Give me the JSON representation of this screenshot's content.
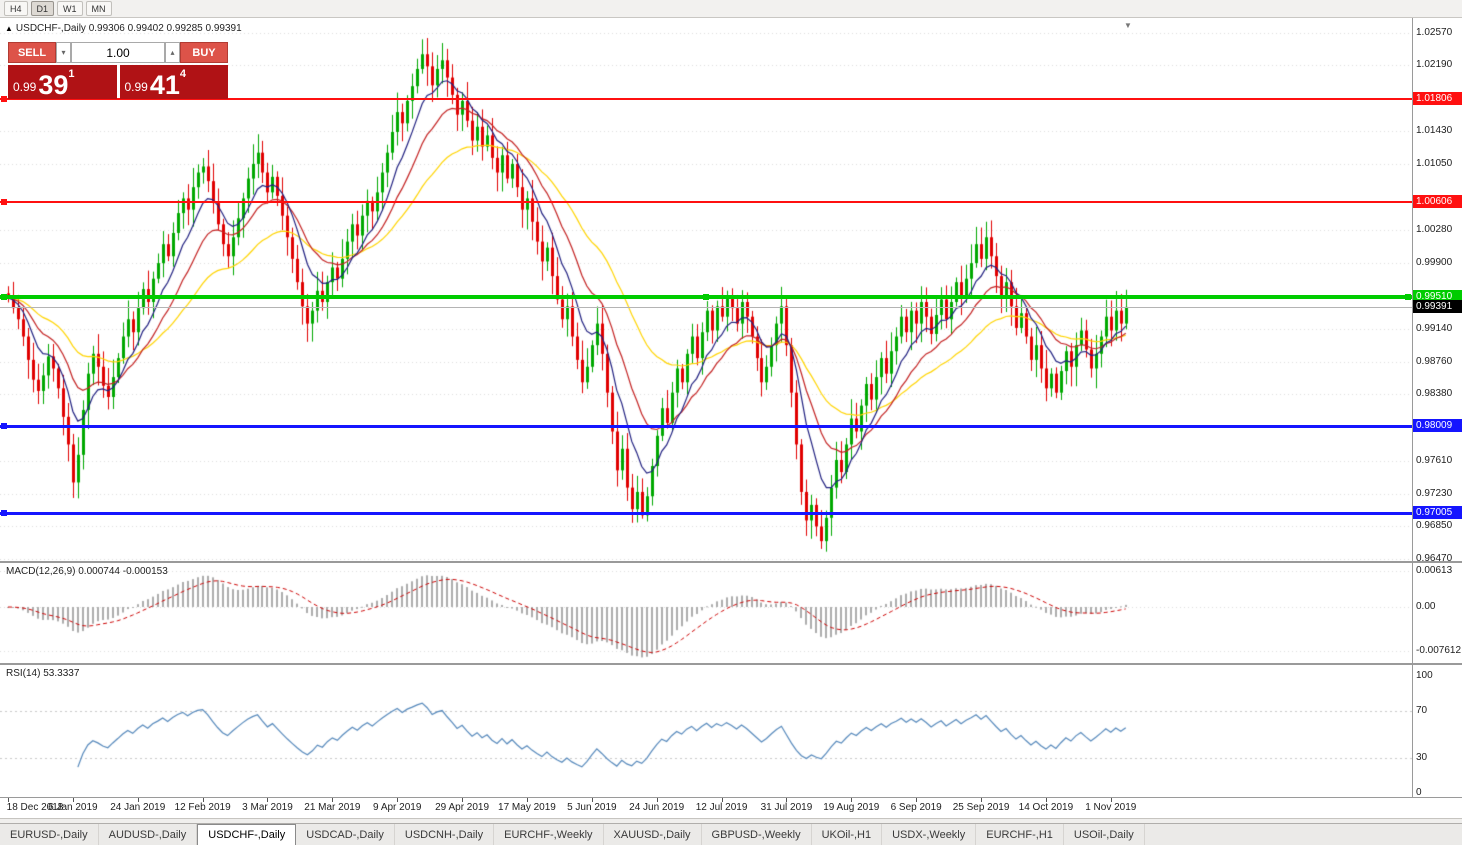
{
  "colors": {
    "up": "#00A800",
    "down": "#E00000",
    "ma_fast": "#202080",
    "ma_mid": "#C32222",
    "ma_slow": "#FFD400",
    "macd_hist": "#ADADAD",
    "macd_signal": "#CC0000",
    "rsi": "#5588BB",
    "grid": "#DCDCDC"
  },
  "toolbar": {
    "timeframes": [
      "H4",
      "D1",
      "W1",
      "MN"
    ],
    "active_index": 1
  },
  "window": {
    "close_icon": "×"
  },
  "chart": {
    "marker": "▲",
    "symbol_title": "USDCHF-,Daily",
    "ohlc_text": "0.99306 0.99402 0.99285 0.99391",
    "shift_marker": "▼"
  },
  "trade_panel": {
    "sell_label": "SELL",
    "buy_label": "BUY",
    "volume": "1.00",
    "spinner_up": "▴",
    "spinner_down": "▾",
    "sell_price": {
      "prefix": "0.99",
      "big": "39",
      "sup": "1"
    },
    "buy_price": {
      "prefix": "0.99",
      "big": "41",
      "sup": "4"
    }
  },
  "price_axis": {
    "labels": [
      "1.02570",
      "1.02190",
      "1.01430",
      "1.01050",
      "1.00280",
      "0.99900",
      "0.99140",
      "0.98760",
      "0.98380",
      "0.97610",
      "0.97230",
      "0.96850",
      "0.96470"
    ],
    "tags": [
      {
        "text": "1.01806",
        "color": "#FF1010"
      },
      {
        "text": "1.00606",
        "color": "#FF1010"
      },
      {
        "text": "0.99510",
        "color": "#00CC00"
      },
      {
        "text": "0.99391",
        "color": "#000000"
      },
      {
        "text": "0.98009",
        "color": "#1515FF"
      },
      {
        "text": "0.97005",
        "color": "#1515FF"
      }
    ]
  },
  "hlines": [
    {
      "value": 1.01806,
      "color": "#FF1010",
      "width": 2,
      "selected": false
    },
    {
      "value": 1.00606,
      "color": "#FF1010",
      "width": 2,
      "selected": false
    },
    {
      "value": 0.9951,
      "color": "#00CC00",
      "width": 4,
      "selected": true
    },
    {
      "value": 0.98009,
      "color": "#1515FF",
      "width": 3,
      "selected": false
    },
    {
      "value": 0.97005,
      "color": "#1515FF",
      "width": 3,
      "selected": false
    }
  ],
  "current_price": 0.99391,
  "macd_panel": {
    "title": "MACD(12,26,9)",
    "value": "0.000744",
    "signal_value": "-0.000153",
    "axis_labels": [
      "0.00613",
      "0.00",
      "-0.007612"
    ]
  },
  "rsi_panel": {
    "title": "RSI(14)",
    "value": "53.3337",
    "axis_labels": [
      "100",
      "70",
      "30",
      "0"
    ],
    "levels": [
      70,
      30
    ]
  },
  "date_axis": {
    "labels": [
      "18 Dec 2018",
      "6 Jan 2019",
      "24 Jan 2019",
      "12 Feb 2019",
      "3 Mar 2019",
      "21 Mar 2019",
      "9 Apr 2019",
      "29 Apr 2019",
      "17 May 2019",
      "5 Jun 2019",
      "24 Jun 2019",
      "12 Jul 2019",
      "31 Jul 2019",
      "19 Aug 2019",
      "6 Sep 2019",
      "25 Sep 2019",
      "14 Oct 2019",
      "1 Nov 2019"
    ],
    "bar_indices": [
      0,
      13,
      26,
      39,
      52,
      65,
      78,
      91,
      104,
      117,
      130,
      143,
      156,
      169,
      182,
      195,
      208,
      221
    ]
  },
  "tabs": {
    "items": [
      "EURUSD-,Daily",
      "AUDUSD-,Daily",
      "USDCHF-,Daily",
      "USDCAD-,Daily",
      "USDCNH-,Daily",
      "EURCHF-,Weekly",
      "XAUUSD-,Daily",
      "GBPUSD-,Weekly",
      "UKOil-,H1",
      "USDX-,Weekly",
      "EURCHF-,H1",
      "USOil-,Daily"
    ],
    "active_index": 2
  },
  "chart_data": {
    "type": "candlestick",
    "title": "USDCHF-,Daily",
    "symbol": "USDCHF",
    "timeframe": "Daily",
    "x_range": [
      "18 Dec 2018",
      "1 Nov 2019"
    ],
    "y_range": [
      0.9645,
      1.0274
    ],
    "open_first": 0.9955,
    "closes": [
      0.995,
      0.9938,
      0.9925,
      0.9905,
      0.9878,
      0.9855,
      0.9842,
      0.986,
      0.9882,
      0.9868,
      0.9845,
      0.9812,
      0.978,
      0.9736,
      0.9768,
      0.982,
      0.9862,
      0.9885,
      0.987,
      0.9848,
      0.9835,
      0.9858,
      0.988,
      0.9905,
      0.9925,
      0.991,
      0.9938,
      0.996,
      0.9945,
      0.9972,
      0.999,
      1.0012,
      0.9998,
      1.0025,
      1.0048,
      1.0065,
      1.0052,
      1.0078,
      1.0095,
      1.0102,
      1.0085,
      1.006,
      1.0035,
      1.0012,
      0.9998,
      1.002,
      1.0042,
      1.0065,
      1.0088,
      1.0105,
      1.0118,
      1.0095,
      1.0072,
      1.009,
      1.0068,
      1.0045,
      1.002,
      0.9995,
      0.9968,
      0.994,
      0.992,
      0.9935,
      0.9958,
      0.9945,
      0.9968,
      0.9985,
      0.9972,
      0.9995,
      1.0015,
      1.0035,
      1.0022,
      1.0045,
      1.0062,
      1.005,
      1.0072,
      1.0095,
      1.0118,
      1.0142,
      1.0165,
      1.0152,
      1.0178,
      1.0195,
      1.0215,
      1.0232,
      1.0218,
      1.0196,
      1.0215,
      1.0225,
      1.0205,
      1.0185,
      1.0162,
      1.0178,
      1.0155,
      1.0132,
      1.0148,
      1.0125,
      1.0138,
      1.0112,
      1.0095,
      1.0115,
      1.0088,
      1.0105,
      1.0078,
      1.0052,
      1.0065,
      1.0038,
      1.0015,
      0.9992,
      1.0008,
      0.9975,
      0.9948,
      0.9925,
      0.994,
      0.9905,
      0.9878,
      0.9852,
      0.987,
      0.9895,
      0.992,
      0.9885,
      0.984,
      0.9795,
      0.975,
      0.9775,
      0.973,
      0.9705,
      0.9725,
      0.9698,
      0.972,
      0.9755,
      0.979,
      0.9822,
      0.9805,
      0.984,
      0.9868,
      0.9852,
      0.9885,
      0.9905,
      0.988,
      0.991,
      0.9935,
      0.9912,
      0.994,
      0.9928,
      0.9952,
      0.9938,
      0.992,
      0.9945,
      0.9928,
      0.9905,
      0.988,
      0.9852,
      0.987,
      0.9895,
      0.992,
      0.994,
      0.9895,
      0.984,
      0.978,
      0.9725,
      0.9692,
      0.971,
      0.9685,
      0.9668,
      0.9695,
      0.973,
      0.9762,
      0.9748,
      0.978,
      0.981,
      0.9795,
      0.9825,
      0.985,
      0.9832,
      0.9858,
      0.988,
      0.9862,
      0.9888,
      0.9905,
      0.9928,
      0.991,
      0.9935,
      0.992,
      0.9945,
      0.9928,
      0.9908,
      0.993,
      0.9948,
      0.9925,
      0.9945,
      0.9968,
      0.995,
      0.9972,
      0.999,
      1.0012,
      0.9995,
      1.002,
      0.9998,
      0.9975,
      0.9952,
      0.9968,
      0.994,
      0.9915,
      0.9932,
      0.9905,
      0.9878,
      0.9895,
      0.9868,
      0.9845,
      0.9862,
      0.984,
      0.9865,
      0.9888,
      0.987,
      0.9895,
      0.9912,
      0.989,
      0.9868,
      0.9885,
      0.9905,
      0.9928,
      0.9912,
      0.9935,
      0.992,
      0.9939
    ],
    "wick_overrides": {
      "13": {
        "low": 0.9718
      },
      "87": {
        "high": 1.0245
      },
      "127": {
        "low": 0.9694
      },
      "163": {
        "low": 0.9659
      }
    },
    "ma_periods": {
      "fast": 8,
      "mid": 16,
      "slow": 34
    },
    "indicators": {
      "macd": [
        12,
        26,
        9
      ],
      "rsi": 14
    },
    "levels": [
      1.01806,
      1.00606,
      0.9951,
      0.98009,
      0.97005
    ]
  }
}
